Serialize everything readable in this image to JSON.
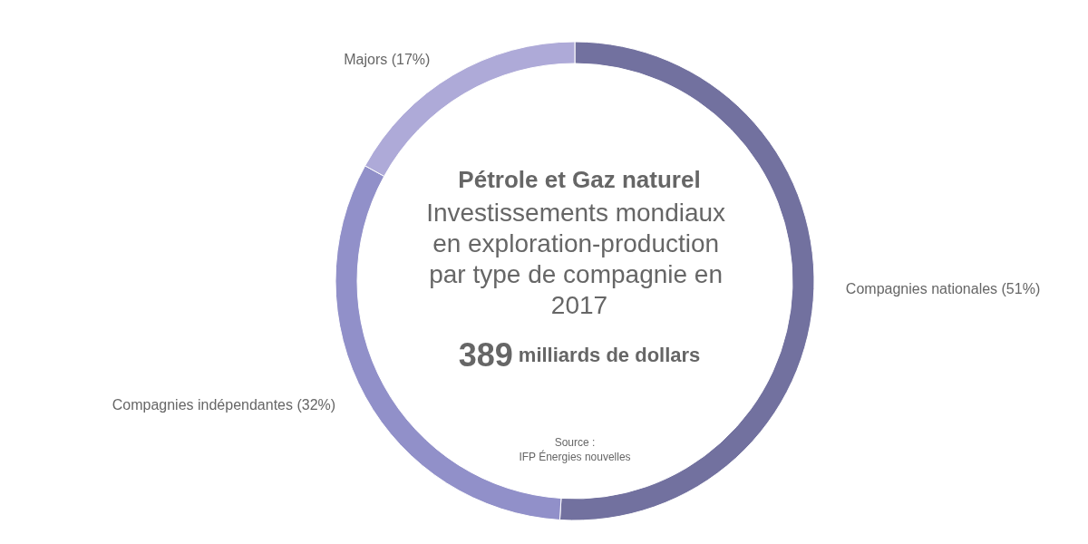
{
  "chart_data": {
    "type": "donut",
    "title": "Pétrole et Gaz naturel",
    "subtitle": "Investissements mondiaux en exploration-production par type de compagnie en 2017",
    "categories": [
      "Compagnies nationales (51%)",
      "Compagnies indépendantes (32%)",
      "Majors (17%)"
    ],
    "values": [
      51,
      32,
      17
    ],
    "colors": [
      "#72719f",
      "#9190c9",
      "#aeaad8"
    ],
    "annotations": [
      "389 milliards de dollars",
      "Source :\nIFP Énergies nouvelles"
    ],
    "legend": false
  }
}
